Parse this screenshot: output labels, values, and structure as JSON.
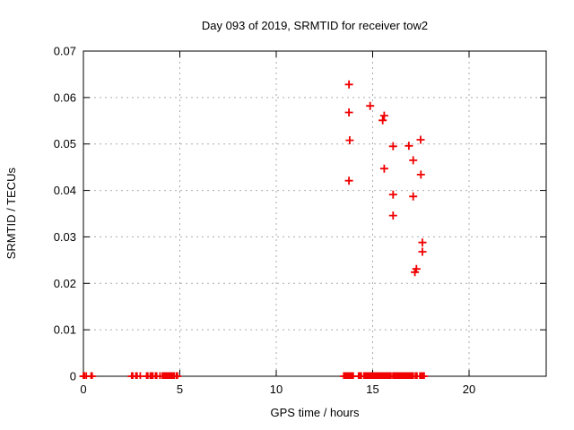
{
  "page": {
    "background": "#ffffff"
  },
  "chart_data": {
    "type": "scatter",
    "title": "Day 093 of 2019, SRMTID for receiver tow2",
    "xlabel": "GPS time / hours",
    "ylabel": "SRMTID / TECUs",
    "xlim": [
      0,
      24
    ],
    "ylim": [
      0,
      0.07
    ],
    "grid": true,
    "legend_position": "none",
    "grid_color": "#ababab",
    "axis_color": "#000000",
    "marker": {
      "shape": "plus",
      "color": "#f00000",
      "size": 9,
      "stroke_width": 1.8
    },
    "xticks": [
      {
        "v": 0,
        "label": "0"
      },
      {
        "v": 5,
        "label": "5"
      },
      {
        "v": 10,
        "label": "10"
      },
      {
        "v": 15,
        "label": "15"
      },
      {
        "v": 20,
        "label": "20"
      }
    ],
    "yticks": [
      {
        "v": 0,
        "label": "0"
      },
      {
        "v": 0.01,
        "label": "0.01"
      },
      {
        "v": 0.02,
        "label": "0.02"
      },
      {
        "v": 0.03,
        "label": "0.03"
      },
      {
        "v": 0.04,
        "label": "0.04"
      },
      {
        "v": 0.05,
        "label": "0.05"
      },
      {
        "v": 0.06,
        "label": "0.06"
      },
      {
        "v": 0.07,
        "label": "0.07"
      }
    ],
    "series": [
      {
        "name": "srmtid",
        "points": [
          [
            13.77,
            0.0628
          ],
          [
            14.87,
            0.0582
          ],
          [
            13.77,
            0.0568
          ],
          [
            15.6,
            0.0561
          ],
          [
            15.52,
            0.0551
          ],
          [
            13.81,
            0.0508
          ],
          [
            16.06,
            0.0495
          ],
          [
            16.88,
            0.0496
          ],
          [
            17.49,
            0.0509
          ],
          [
            17.1,
            0.0465
          ],
          [
            15.6,
            0.0447
          ],
          [
            17.5,
            0.0434
          ],
          [
            13.77,
            0.0421
          ],
          [
            16.06,
            0.0391
          ],
          [
            17.1,
            0.0387
          ],
          [
            16.06,
            0.0346
          ],
          [
            17.58,
            0.0288
          ],
          [
            17.58,
            0.0268
          ],
          [
            17.27,
            0.0231
          ],
          [
            17.19,
            0.0224
          ]
        ],
        "zero_x": [
          0.0,
          0.05,
          0.15,
          0.4,
          0.45,
          2.5,
          2.56,
          2.72,
          2.78,
          2.95,
          3.28,
          3.34,
          3.47,
          3.53,
          3.6,
          3.74,
          3.8,
          3.97,
          4.1,
          4.16,
          4.22,
          4.28,
          4.34,
          4.4,
          4.46,
          4.52,
          4.58,
          4.64,
          4.7,
          4.82,
          4.88,
          13.5,
          13.57,
          13.64,
          13.71,
          13.78,
          13.85,
          13.92,
          13.99,
          14.27,
          14.34,
          14.41,
          14.55,
          14.62,
          14.69,
          14.76,
          14.83,
          14.9,
          14.97,
          15.04,
          15.11,
          15.18,
          15.25,
          15.32,
          15.39,
          15.46,
          15.53,
          15.6,
          15.67,
          15.74,
          15.81,
          15.88,
          15.95,
          16.05,
          16.12,
          16.19,
          16.26,
          16.33,
          16.4,
          16.47,
          16.54,
          16.61,
          16.68,
          16.75,
          16.82,
          16.89,
          16.96,
          17.03,
          17.1,
          17.22,
          17.3,
          17.45,
          17.52,
          17.6,
          17.67
        ]
      }
    ]
  }
}
